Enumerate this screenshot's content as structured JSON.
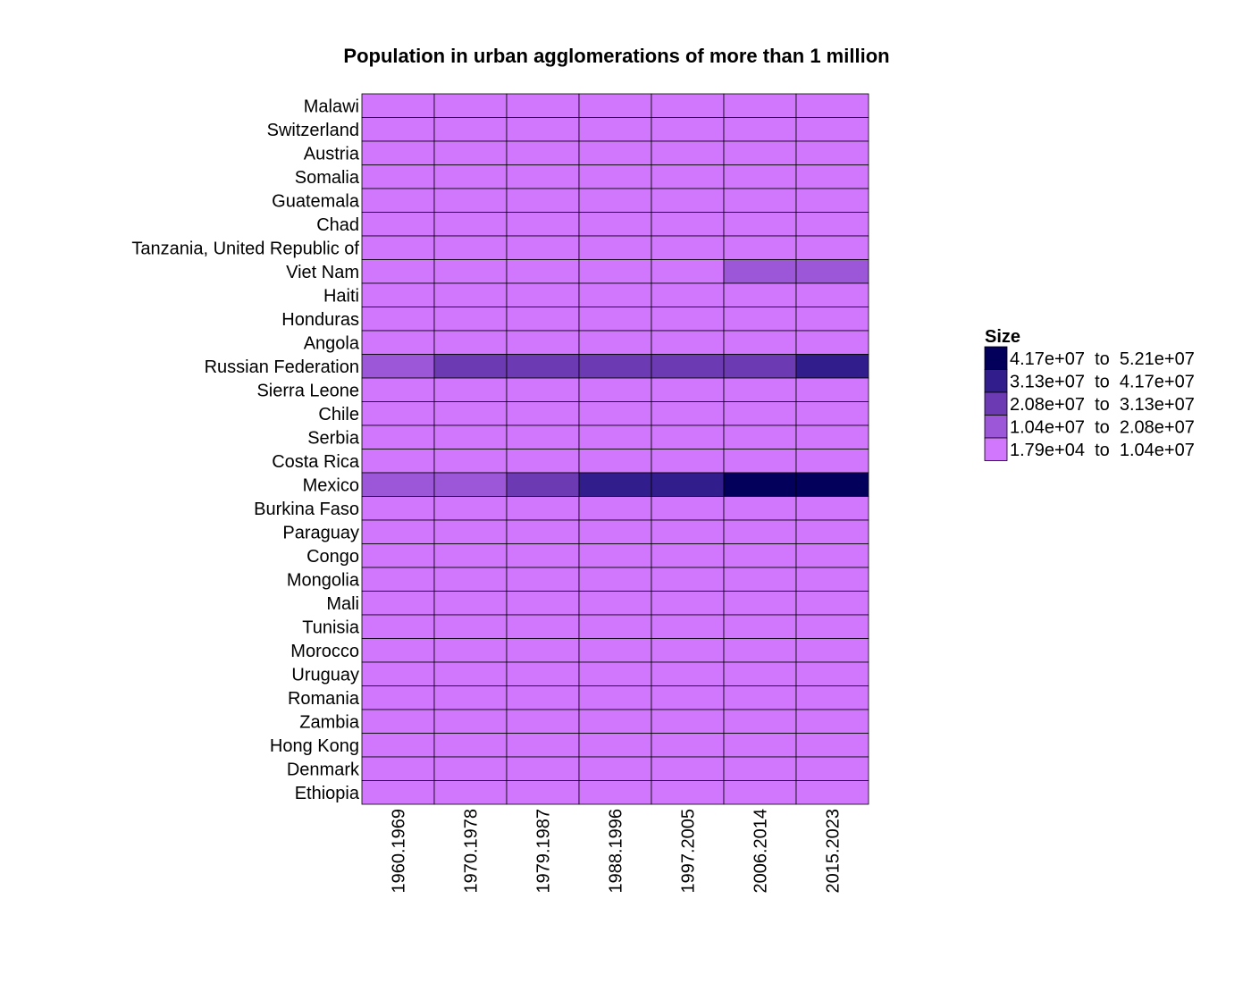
{
  "chart_data": {
    "type": "heatmap",
    "title": "Population in urban agglomerations of more than 1 million",
    "rows": [
      "Malawi",
      "Switzerland",
      "Austria",
      "Somalia",
      "Guatemala",
      "Chad",
      "Tanzania, United Republic of",
      "Viet Nam",
      "Haiti",
      "Honduras",
      "Angola",
      "Russian Federation",
      "Sierra Leone",
      "Chile",
      "Serbia",
      "Costa Rica",
      "Mexico",
      "Burkina Faso",
      "Paraguay",
      "Congo",
      "Mongolia",
      "Mali",
      "Tunisia",
      "Morocco",
      "Uruguay",
      "Romania",
      "Zambia",
      "Hong Kong",
      "Denmark",
      "Ethiopia"
    ],
    "columns": [
      "1960.1969",
      "1970.1978",
      "1979.1987",
      "1988.1996",
      "1997.2005",
      "2006.2014",
      "2015.2023"
    ],
    "values": [
      [
        0,
        0,
        0,
        0,
        0,
        0,
        0
      ],
      [
        0,
        0,
        0,
        0,
        0,
        0,
        0
      ],
      [
        0,
        0,
        0,
        0,
        0,
        0,
        0
      ],
      [
        0,
        0,
        0,
        0,
        0,
        0,
        0
      ],
      [
        0,
        0,
        0,
        0,
        0,
        0,
        0
      ],
      [
        0,
        0,
        0,
        0,
        0,
        0,
        0
      ],
      [
        0,
        0,
        0,
        0,
        0,
        0,
        0
      ],
      [
        0,
        0,
        0,
        0,
        0,
        1,
        1
      ],
      [
        0,
        0,
        0,
        0,
        0,
        0,
        0
      ],
      [
        0,
        0,
        0,
        0,
        0,
        0,
        0
      ],
      [
        0,
        0,
        0,
        0,
        0,
        0,
        0
      ],
      [
        1,
        2,
        2,
        2,
        2,
        2,
        3
      ],
      [
        0,
        0,
        0,
        0,
        0,
        0,
        0
      ],
      [
        0,
        0,
        0,
        0,
        0,
        0,
        0
      ],
      [
        0,
        0,
        0,
        0,
        0,
        0,
        0
      ],
      [
        0,
        0,
        0,
        0,
        0,
        0,
        0
      ],
      [
        1,
        1,
        2,
        3,
        3,
        4,
        4
      ],
      [
        0,
        0,
        0,
        0,
        0,
        0,
        0
      ],
      [
        0,
        0,
        0,
        0,
        0,
        0,
        0
      ],
      [
        0,
        0,
        0,
        0,
        0,
        0,
        0
      ],
      [
        0,
        0,
        0,
        0,
        0,
        0,
        0
      ],
      [
        0,
        0,
        0,
        0,
        0,
        0,
        0
      ],
      [
        0,
        0,
        0,
        0,
        0,
        0,
        0
      ],
      [
        0,
        0,
        0,
        0,
        0,
        0,
        0
      ],
      [
        0,
        0,
        0,
        0,
        0,
        0,
        0
      ],
      [
        0,
        0,
        0,
        0,
        0,
        0,
        0
      ],
      [
        0,
        0,
        0,
        0,
        0,
        0,
        0
      ],
      [
        0,
        0,
        0,
        0,
        0,
        0,
        0
      ],
      [
        0,
        0,
        0,
        0,
        0,
        0,
        0
      ],
      [
        0,
        0,
        0,
        0,
        0,
        0,
        0
      ]
    ],
    "legend": {
      "title": "Size",
      "placement": "right",
      "bins": [
        {
          "label": "4.17e+07  to  5.21e+07",
          "color": "#03005c"
        },
        {
          "label": "3.13e+07  to  4.17e+07",
          "color": "#321d8c"
        },
        {
          "label": "2.08e+07  to  3.13e+07",
          "color": "#6c3bb3"
        },
        {
          "label": "1.04e+07  to  2.08e+07",
          "color": "#9c57d8"
        },
        {
          "label": "1.79e+04  to  1.04e+07",
          "color": "#d077fd"
        }
      ]
    },
    "grid": false
  }
}
